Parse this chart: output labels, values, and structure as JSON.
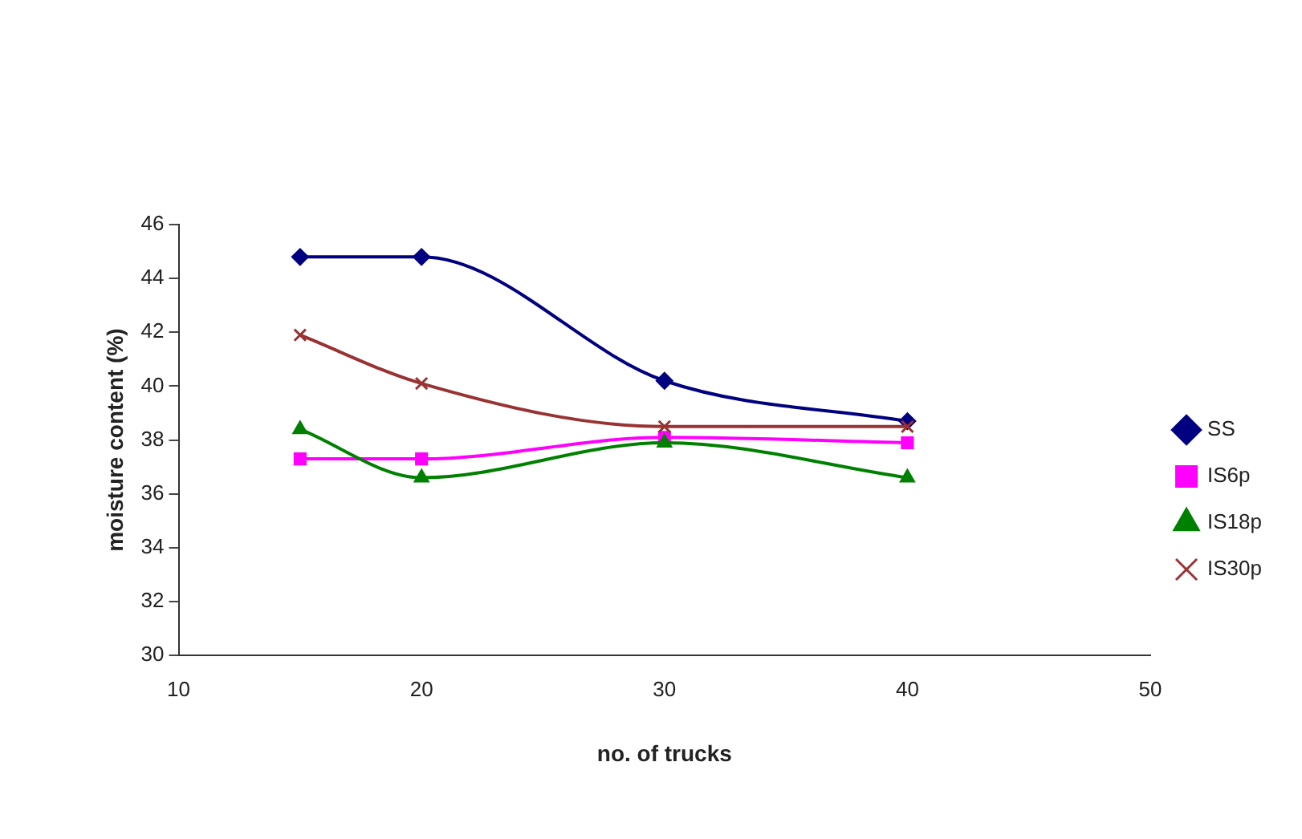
{
  "chart_data": {
    "type": "line",
    "xlabel": "no. of trucks",
    "ylabel": "moisture content (%)",
    "x": [
      15,
      20,
      30,
      40
    ],
    "series": [
      {
        "name": "SS",
        "color": "#000080",
        "marker": "diamond",
        "values": [
          44.8,
          44.8,
          40.2,
          38.7
        ]
      },
      {
        "name": "IS6p",
        "color": "#ff00ff",
        "marker": "square",
        "values": [
          37.3,
          37.3,
          38.1,
          37.9
        ]
      },
      {
        "name": "IS18p",
        "color": "#008000",
        "marker": "triangle",
        "values": [
          38.4,
          36.6,
          37.9,
          36.6
        ]
      },
      {
        "name": "IS30p",
        "color": "#993333",
        "marker": "cross",
        "values": [
          41.9,
          40.1,
          38.5,
          38.5
        ]
      }
    ],
    "xlim": [
      10,
      50
    ],
    "xticks": [
      10,
      20,
      30,
      40,
      50
    ],
    "ylim": [
      30,
      46
    ],
    "yticks": [
      30,
      32,
      34,
      36,
      38,
      40,
      42,
      44,
      46
    ],
    "grid": false,
    "legend": "right",
    "line_style": "solid"
  }
}
